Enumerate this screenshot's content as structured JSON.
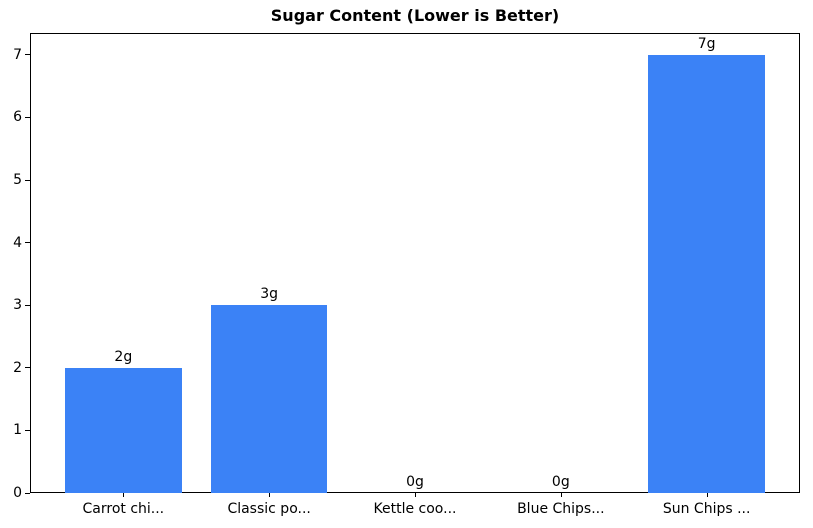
{
  "chart_data": {
    "type": "bar",
    "title": "Sugar Content (Lower is Better)",
    "categories": [
      "Carrot chi...",
      "Classic po...",
      "Kettle coo...",
      "Blue Chips...",
      "Sun Chips ..."
    ],
    "values": [
      2,
      3,
      0,
      0,
      7
    ],
    "bar_labels": [
      "2g",
      "3g",
      "0g",
      "0g",
      "7g"
    ],
    "yticks": [
      0,
      1,
      2,
      3,
      4,
      5,
      6,
      7
    ],
    "ylim": [
      0,
      7.35
    ],
    "xlabel": "",
    "ylabel": "",
    "grid": false,
    "bar_color": "#3b82f6",
    "axis_color": "#000000",
    "background_color": "#ffffff",
    "title_color": "#000000"
  }
}
